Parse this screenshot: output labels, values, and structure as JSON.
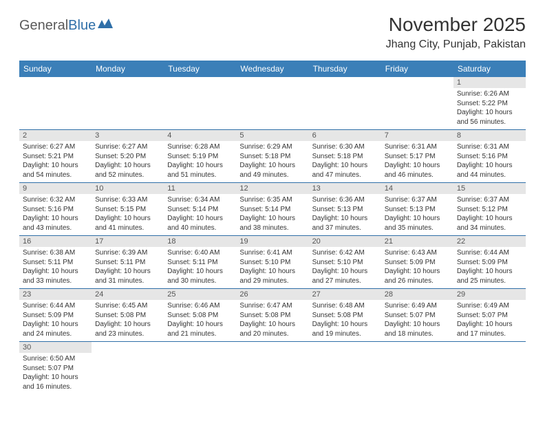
{
  "logo": {
    "text1": "General",
    "text2": "Blue"
  },
  "title": "November 2025",
  "location": "Jhang City, Punjab, Pakistan",
  "colors": {
    "header_bg": "#3b7fb8",
    "header_text": "#ffffff",
    "daynum_bg": "#e6e6e6",
    "border": "#2f6fa8",
    "text": "#333333",
    "logo_gray": "#5a5a5a",
    "logo_blue": "#2f6fa8"
  },
  "weekdays": [
    "Sunday",
    "Monday",
    "Tuesday",
    "Wednesday",
    "Thursday",
    "Friday",
    "Saturday"
  ],
  "weeks": [
    [
      null,
      null,
      null,
      null,
      null,
      null,
      {
        "n": "1",
        "sr": "Sunrise: 6:26 AM",
        "ss": "Sunset: 5:22 PM",
        "dl": "Daylight: 10 hours and 56 minutes."
      }
    ],
    [
      {
        "n": "2",
        "sr": "Sunrise: 6:27 AM",
        "ss": "Sunset: 5:21 PM",
        "dl": "Daylight: 10 hours and 54 minutes."
      },
      {
        "n": "3",
        "sr": "Sunrise: 6:27 AM",
        "ss": "Sunset: 5:20 PM",
        "dl": "Daylight: 10 hours and 52 minutes."
      },
      {
        "n": "4",
        "sr": "Sunrise: 6:28 AM",
        "ss": "Sunset: 5:19 PM",
        "dl": "Daylight: 10 hours and 51 minutes."
      },
      {
        "n": "5",
        "sr": "Sunrise: 6:29 AM",
        "ss": "Sunset: 5:18 PM",
        "dl": "Daylight: 10 hours and 49 minutes."
      },
      {
        "n": "6",
        "sr": "Sunrise: 6:30 AM",
        "ss": "Sunset: 5:18 PM",
        "dl": "Daylight: 10 hours and 47 minutes."
      },
      {
        "n": "7",
        "sr": "Sunrise: 6:31 AM",
        "ss": "Sunset: 5:17 PM",
        "dl": "Daylight: 10 hours and 46 minutes."
      },
      {
        "n": "8",
        "sr": "Sunrise: 6:31 AM",
        "ss": "Sunset: 5:16 PM",
        "dl": "Daylight: 10 hours and 44 minutes."
      }
    ],
    [
      {
        "n": "9",
        "sr": "Sunrise: 6:32 AM",
        "ss": "Sunset: 5:16 PM",
        "dl": "Daylight: 10 hours and 43 minutes."
      },
      {
        "n": "10",
        "sr": "Sunrise: 6:33 AM",
        "ss": "Sunset: 5:15 PM",
        "dl": "Daylight: 10 hours and 41 minutes."
      },
      {
        "n": "11",
        "sr": "Sunrise: 6:34 AM",
        "ss": "Sunset: 5:14 PM",
        "dl": "Daylight: 10 hours and 40 minutes."
      },
      {
        "n": "12",
        "sr": "Sunrise: 6:35 AM",
        "ss": "Sunset: 5:14 PM",
        "dl": "Daylight: 10 hours and 38 minutes."
      },
      {
        "n": "13",
        "sr": "Sunrise: 6:36 AM",
        "ss": "Sunset: 5:13 PM",
        "dl": "Daylight: 10 hours and 37 minutes."
      },
      {
        "n": "14",
        "sr": "Sunrise: 6:37 AM",
        "ss": "Sunset: 5:13 PM",
        "dl": "Daylight: 10 hours and 35 minutes."
      },
      {
        "n": "15",
        "sr": "Sunrise: 6:37 AM",
        "ss": "Sunset: 5:12 PM",
        "dl": "Daylight: 10 hours and 34 minutes."
      }
    ],
    [
      {
        "n": "16",
        "sr": "Sunrise: 6:38 AM",
        "ss": "Sunset: 5:11 PM",
        "dl": "Daylight: 10 hours and 33 minutes."
      },
      {
        "n": "17",
        "sr": "Sunrise: 6:39 AM",
        "ss": "Sunset: 5:11 PM",
        "dl": "Daylight: 10 hours and 31 minutes."
      },
      {
        "n": "18",
        "sr": "Sunrise: 6:40 AM",
        "ss": "Sunset: 5:11 PM",
        "dl": "Daylight: 10 hours and 30 minutes."
      },
      {
        "n": "19",
        "sr": "Sunrise: 6:41 AM",
        "ss": "Sunset: 5:10 PM",
        "dl": "Daylight: 10 hours and 29 minutes."
      },
      {
        "n": "20",
        "sr": "Sunrise: 6:42 AM",
        "ss": "Sunset: 5:10 PM",
        "dl": "Daylight: 10 hours and 27 minutes."
      },
      {
        "n": "21",
        "sr": "Sunrise: 6:43 AM",
        "ss": "Sunset: 5:09 PM",
        "dl": "Daylight: 10 hours and 26 minutes."
      },
      {
        "n": "22",
        "sr": "Sunrise: 6:44 AM",
        "ss": "Sunset: 5:09 PM",
        "dl": "Daylight: 10 hours and 25 minutes."
      }
    ],
    [
      {
        "n": "23",
        "sr": "Sunrise: 6:44 AM",
        "ss": "Sunset: 5:09 PM",
        "dl": "Daylight: 10 hours and 24 minutes."
      },
      {
        "n": "24",
        "sr": "Sunrise: 6:45 AM",
        "ss": "Sunset: 5:08 PM",
        "dl": "Daylight: 10 hours and 23 minutes."
      },
      {
        "n": "25",
        "sr": "Sunrise: 6:46 AM",
        "ss": "Sunset: 5:08 PM",
        "dl": "Daylight: 10 hours and 21 minutes."
      },
      {
        "n": "26",
        "sr": "Sunrise: 6:47 AM",
        "ss": "Sunset: 5:08 PM",
        "dl": "Daylight: 10 hours and 20 minutes."
      },
      {
        "n": "27",
        "sr": "Sunrise: 6:48 AM",
        "ss": "Sunset: 5:08 PM",
        "dl": "Daylight: 10 hours and 19 minutes."
      },
      {
        "n": "28",
        "sr": "Sunrise: 6:49 AM",
        "ss": "Sunset: 5:07 PM",
        "dl": "Daylight: 10 hours and 18 minutes."
      },
      {
        "n": "29",
        "sr": "Sunrise: 6:49 AM",
        "ss": "Sunset: 5:07 PM",
        "dl": "Daylight: 10 hours and 17 minutes."
      }
    ],
    [
      {
        "n": "30",
        "sr": "Sunrise: 6:50 AM",
        "ss": "Sunset: 5:07 PM",
        "dl": "Daylight: 10 hours and 16 minutes."
      },
      null,
      null,
      null,
      null,
      null,
      null
    ]
  ]
}
